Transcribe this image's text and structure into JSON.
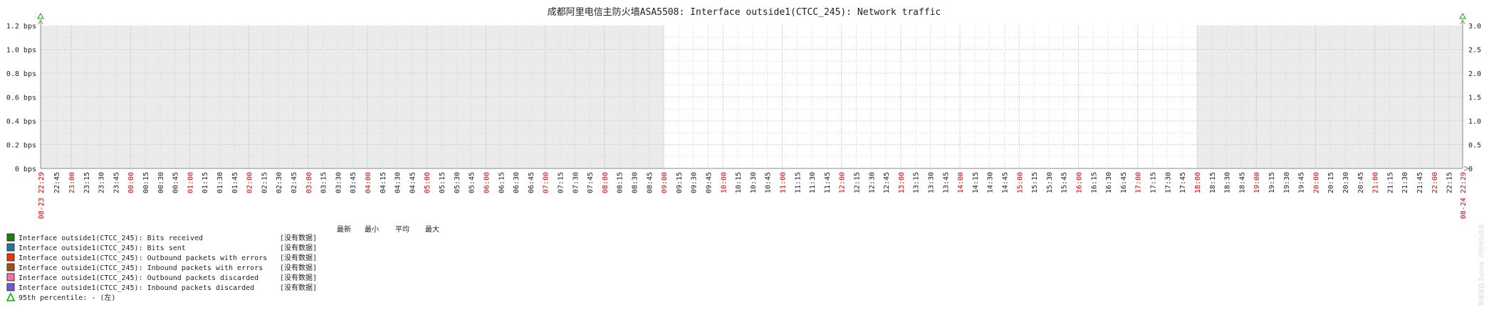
{
  "chart_data": {
    "type": "line",
    "title": "成都阿里电信主防火墙ASA5508: Interface outside1(CTCC_245): Network traffic",
    "y_left": {
      "ticks": [
        "0 bps",
        "0.2 bps",
        "0.4 bps",
        "0.6 bps",
        "0.8 bps",
        "1.0 bps",
        "1.2 bps"
      ],
      "range": [
        0,
        1.2
      ]
    },
    "y_right": {
      "ticks": [
        "0",
        "0.5",
        "1.0",
        "1.5",
        "2.0",
        "2.5",
        "3.0"
      ],
      "range": [
        0,
        3.0
      ]
    },
    "x_start_label": "08-23 22:29",
    "x_end_label": "08-24 22:29",
    "x_ticks": [
      {
        "t": "22:45",
        "major": false
      },
      {
        "t": "23:00",
        "major": true
      },
      {
        "t": "23:15",
        "major": false
      },
      {
        "t": "23:30",
        "major": false
      },
      {
        "t": "23:45",
        "major": false
      },
      {
        "t": "00:00",
        "major": true
      },
      {
        "t": "00:15",
        "major": false
      },
      {
        "t": "00:30",
        "major": false
      },
      {
        "t": "00:45",
        "major": false
      },
      {
        "t": "01:00",
        "major": true
      },
      {
        "t": "01:15",
        "major": false
      },
      {
        "t": "01:30",
        "major": false
      },
      {
        "t": "01:45",
        "major": false
      },
      {
        "t": "02:00",
        "major": true
      },
      {
        "t": "02:15",
        "major": false
      },
      {
        "t": "02:30",
        "major": false
      },
      {
        "t": "02:45",
        "major": false
      },
      {
        "t": "03:00",
        "major": true
      },
      {
        "t": "03:15",
        "major": false
      },
      {
        "t": "03:30",
        "major": false
      },
      {
        "t": "03:45",
        "major": false
      },
      {
        "t": "04:00",
        "major": true
      },
      {
        "t": "04:15",
        "major": false
      },
      {
        "t": "04:30",
        "major": false
      },
      {
        "t": "04:45",
        "major": false
      },
      {
        "t": "05:00",
        "major": true
      },
      {
        "t": "05:15",
        "major": false
      },
      {
        "t": "05:30",
        "major": false
      },
      {
        "t": "05:45",
        "major": false
      },
      {
        "t": "06:00",
        "major": true
      },
      {
        "t": "06:15",
        "major": false
      },
      {
        "t": "06:30",
        "major": false
      },
      {
        "t": "06:45",
        "major": false
      },
      {
        "t": "07:00",
        "major": true
      },
      {
        "t": "07:15",
        "major": false
      },
      {
        "t": "07:30",
        "major": false
      },
      {
        "t": "07:45",
        "major": false
      },
      {
        "t": "08:00",
        "major": true
      },
      {
        "t": "08:15",
        "major": false
      },
      {
        "t": "08:30",
        "major": false
      },
      {
        "t": "08:45",
        "major": false
      },
      {
        "t": "09:00",
        "major": true
      },
      {
        "t": "09:15",
        "major": false
      },
      {
        "t": "09:30",
        "major": false
      },
      {
        "t": "09:45",
        "major": false
      },
      {
        "t": "10:00",
        "major": true
      },
      {
        "t": "10:15",
        "major": false
      },
      {
        "t": "10:30",
        "major": false
      },
      {
        "t": "10:45",
        "major": false
      },
      {
        "t": "11:00",
        "major": true
      },
      {
        "t": "11:15",
        "major": false
      },
      {
        "t": "11:30",
        "major": false
      },
      {
        "t": "11:45",
        "major": false
      },
      {
        "t": "12:00",
        "major": true
      },
      {
        "t": "12:15",
        "major": false
      },
      {
        "t": "12:30",
        "major": false
      },
      {
        "t": "12:45",
        "major": false
      },
      {
        "t": "13:00",
        "major": true
      },
      {
        "t": "13:15",
        "major": false
      },
      {
        "t": "13:30",
        "major": false
      },
      {
        "t": "13:45",
        "major": false
      },
      {
        "t": "14:00",
        "major": true
      },
      {
        "t": "14:15",
        "major": false
      },
      {
        "t": "14:30",
        "major": false
      },
      {
        "t": "14:45",
        "major": false
      },
      {
        "t": "15:00",
        "major": true
      },
      {
        "t": "15:15",
        "major": false
      },
      {
        "t": "15:30",
        "major": false
      },
      {
        "t": "15:45",
        "major": false
      },
      {
        "t": "16:00",
        "major": true
      },
      {
        "t": "16:15",
        "major": false
      },
      {
        "t": "16:30",
        "major": false
      },
      {
        "t": "16:45",
        "major": false
      },
      {
        "t": "17:00",
        "major": true
      },
      {
        "t": "17:15",
        "major": false
      },
      {
        "t": "17:30",
        "major": false
      },
      {
        "t": "17:45",
        "major": false
      },
      {
        "t": "18:00",
        "major": true
      },
      {
        "t": "18:15",
        "major": false
      },
      {
        "t": "18:30",
        "major": false
      },
      {
        "t": "18:45",
        "major": false
      },
      {
        "t": "19:00",
        "major": true
      },
      {
        "t": "19:15",
        "major": false
      },
      {
        "t": "19:30",
        "major": false
      },
      {
        "t": "19:45",
        "major": false
      },
      {
        "t": "20:00",
        "major": true
      },
      {
        "t": "20:15",
        "major": false
      },
      {
        "t": "20:30",
        "major": false
      },
      {
        "t": "20:45",
        "major": false
      },
      {
        "t": "21:00",
        "major": true
      },
      {
        "t": "21:15",
        "major": false
      },
      {
        "t": "21:30",
        "major": false
      },
      {
        "t": "21:45",
        "major": false
      },
      {
        "t": "22:00",
        "major": true
      },
      {
        "t": "22:15",
        "major": false
      }
    ],
    "shaded_periods": [
      {
        "from": "22:29",
        "to": "09:00"
      },
      {
        "from": "18:00",
        "to": "22:29"
      }
    ],
    "legend_headers": [
      "最新",
      "最小",
      "平均",
      "最大"
    ],
    "series": [
      {
        "name": "Interface outside1(CTCC_245): Bits received",
        "color": "#1a7c11",
        "status": "[没有数据]",
        "values": []
      },
      {
        "name": "Interface outside1(CTCC_245): Bits sent",
        "color": "#2774a4",
        "status": "[没有数据]",
        "values": []
      },
      {
        "name": "Interface outside1(CTCC_245): Outbound packets with errors",
        "color": "#f63100",
        "status": "[没有数据]",
        "values": []
      },
      {
        "name": "Interface outside1(CTCC_245): Inbound packets with errors",
        "color": "#a54f10",
        "status": "[没有数据]",
        "values": []
      },
      {
        "name": "Interface outside1(CTCC_245): Outbound packets discarded",
        "color": "#fc6ea3",
        "status": "[没有数据]",
        "values": []
      },
      {
        "name": "Interface outside1(CTCC_245): Inbound packets discarded",
        "color": "#6c59dc",
        "status": "[没有数据]",
        "values": []
      }
    ],
    "percentile_label": "95th percentile: - (左)",
    "percentile_color": "#00aa00",
    "watermark": "数据来自 Zabbix, 内网地址信息"
  }
}
